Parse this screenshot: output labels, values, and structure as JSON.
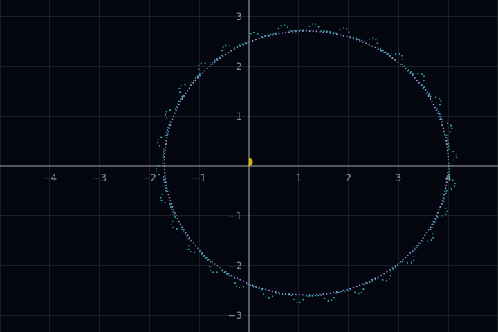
{
  "chart_data": {
    "type": "scatter",
    "title": "",
    "xlabel": "",
    "ylabel": "",
    "xlim": [
      -5,
      5
    ],
    "ylim": [
      -3.333,
      3.333
    ],
    "grid": true,
    "x_ticks": [
      -4,
      -3,
      -2,
      -1,
      1,
      2,
      3,
      4
    ],
    "y_ticks": [
      -3,
      -2,
      -1,
      1,
      2,
      3
    ],
    "x_tick_labels": [
      "−4",
      "−3",
      "−2",
      "−1",
      "1",
      "2",
      "3",
      "4"
    ],
    "y_tick_labels": [
      "−3",
      "−2",
      "−1",
      "1",
      "2",
      "3"
    ],
    "colors": {
      "background": "#03050f",
      "grid": "#2b2f2c",
      "axis": "#8a8a8a",
      "tick_text": "#8a8d90",
      "orbit_inner": "#a79fe0",
      "orbit_outer": "#2fb3b8",
      "marker": "#d4b40f"
    },
    "series": [
      {
        "kind": "dotted-orbit",
        "color": "#a79fe0",
        "center": [
          1.15,
          0.06
        ],
        "radii": [
          2.85,
          2.65
        ]
      },
      {
        "kind": "dotted-orbit-wobble",
        "color": "#2fb3b8",
        "center": [
          1.15,
          0.06
        ],
        "radii": [
          2.88,
          2.67
        ],
        "wobble": 0.05,
        "lobes": 30
      },
      {
        "kind": "marker",
        "color": "#d4b40f",
        "point": [
          0.0,
          0.08
        ]
      }
    ]
  }
}
